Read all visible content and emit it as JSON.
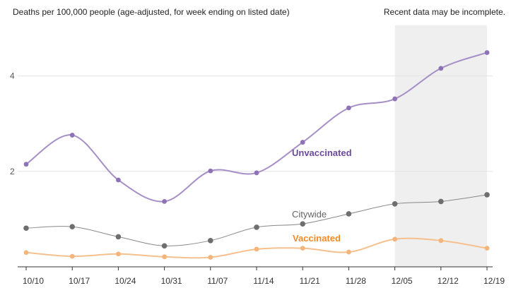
{
  "chart_data": {
    "type": "line",
    "title": "Deaths per 100,000 people (age-adjusted, for week ending on listed date)",
    "note": "Recent data may be incomplete.",
    "categories": [
      "10/10",
      "10/17",
      "10/24",
      "10/31",
      "11/07",
      "11/14",
      "11/21",
      "11/28",
      "12/05",
      "12/12",
      "12/19"
    ],
    "yticks": [
      2,
      4
    ],
    "ylim": [
      0,
      5
    ],
    "grid": true,
    "incomplete_range": [
      "12/05",
      "12/19"
    ],
    "series": [
      {
        "name": "Unvaccinated",
        "color": "#6b4a9a",
        "line_color": "#a68fc6",
        "marker_color": "#8d72b8",
        "values": [
          2.15,
          2.76,
          1.82,
          1.37,
          2.01,
          1.97,
          2.61,
          3.33,
          3.52,
          4.16,
          4.49
        ],
        "label_bold": true
      },
      {
        "name": "Citywide",
        "color": "#666666",
        "line_color": "#888888",
        "marker_color": "#6e6e6e",
        "values": [
          0.81,
          0.84,
          0.63,
          0.44,
          0.55,
          0.83,
          0.9,
          1.11,
          1.32,
          1.37,
          1.51
        ],
        "label_bold": false
      },
      {
        "name": "Vaccinated",
        "color": "#f08a24",
        "line_color": "#f6c08e",
        "marker_color": "#f5b57a",
        "values": [
          0.3,
          0.22,
          0.27,
          0.21,
          0.2,
          0.37,
          0.39,
          0.31,
          0.58,
          0.55,
          0.39
        ],
        "label_bold": true
      }
    ]
  }
}
